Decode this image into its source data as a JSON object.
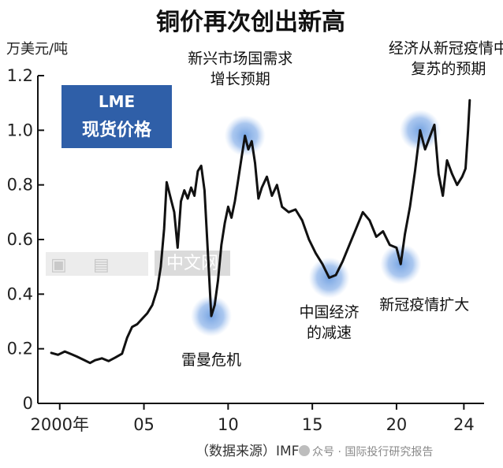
{
  "chart_data": {
    "type": "line",
    "title": "铜价再次创出新高",
    "ylabel": "万美元/吨",
    "ylim": [
      0,
      1.2
    ],
    "yticks": [
      "0",
      "0.2",
      "0.4",
      "0.6",
      "0.8",
      "1.0",
      "1.2"
    ],
    "xlim": [
      1998.7,
      2025.2
    ],
    "xticks": [
      {
        "x": 2000,
        "label": "2000年"
      },
      {
        "x": 2005,
        "label": "05"
      },
      {
        "x": 2010,
        "label": "10"
      },
      {
        "x": 2015,
        "label": "15"
      },
      {
        "x": 2020,
        "label": "20"
      },
      {
        "x": 2024,
        "label": "24"
      }
    ],
    "grid": false,
    "legend_box": {
      "line1": "LME",
      "line2": "现货价格"
    },
    "series": [
      {
        "name": "",
        "points": [
          [
            1999.5,
            0.185
          ],
          [
            1999.9,
            0.178
          ],
          [
            2000.3,
            0.19
          ],
          [
            2000.7,
            0.18
          ],
          [
            2001.0,
            0.172
          ],
          [
            2001.4,
            0.16
          ],
          [
            2001.8,
            0.148
          ],
          [
            2002.1,
            0.158
          ],
          [
            2002.5,
            0.165
          ],
          [
            2002.9,
            0.155
          ],
          [
            2003.3,
            0.168
          ],
          [
            2003.7,
            0.182
          ],
          [
            2004.0,
            0.24
          ],
          [
            2004.3,
            0.28
          ],
          [
            2004.6,
            0.29
          ],
          [
            2004.9,
            0.31
          ],
          [
            2005.2,
            0.33
          ],
          [
            2005.5,
            0.36
          ],
          [
            2005.8,
            0.42
          ],
          [
            2006.0,
            0.5
          ],
          [
            2006.2,
            0.64
          ],
          [
            2006.35,
            0.81
          ],
          [
            2006.55,
            0.76
          ],
          [
            2006.8,
            0.7
          ],
          [
            2007.0,
            0.57
          ],
          [
            2007.2,
            0.74
          ],
          [
            2007.4,
            0.78
          ],
          [
            2007.6,
            0.75
          ],
          [
            2007.8,
            0.79
          ],
          [
            2008.0,
            0.76
          ],
          [
            2008.2,
            0.85
          ],
          [
            2008.4,
            0.87
          ],
          [
            2008.6,
            0.78
          ],
          [
            2008.8,
            0.55
          ],
          [
            2009.0,
            0.32
          ],
          [
            2009.2,
            0.36
          ],
          [
            2009.4,
            0.45
          ],
          [
            2009.6,
            0.58
          ],
          [
            2009.8,
            0.66
          ],
          [
            2010.0,
            0.72
          ],
          [
            2010.2,
            0.68
          ],
          [
            2010.4,
            0.74
          ],
          [
            2010.6,
            0.82
          ],
          [
            2010.8,
            0.9
          ],
          [
            2011.0,
            0.98
          ],
          [
            2011.2,
            0.93
          ],
          [
            2011.4,
            0.96
          ],
          [
            2011.6,
            0.88
          ],
          [
            2011.8,
            0.75
          ],
          [
            2012.0,
            0.79
          ],
          [
            2012.3,
            0.83
          ],
          [
            2012.6,
            0.76
          ],
          [
            2012.9,
            0.8
          ],
          [
            2013.2,
            0.72
          ],
          [
            2013.6,
            0.7
          ],
          [
            2014.0,
            0.71
          ],
          [
            2014.4,
            0.67
          ],
          [
            2014.8,
            0.6
          ],
          [
            2015.2,
            0.55
          ],
          [
            2015.6,
            0.51
          ],
          [
            2016.0,
            0.46
          ],
          [
            2016.4,
            0.47
          ],
          [
            2016.8,
            0.52
          ],
          [
            2017.2,
            0.58
          ],
          [
            2017.6,
            0.64
          ],
          [
            2018.0,
            0.7
          ],
          [
            2018.4,
            0.67
          ],
          [
            2018.8,
            0.61
          ],
          [
            2019.2,
            0.63
          ],
          [
            2019.6,
            0.58
          ],
          [
            2020.0,
            0.57
          ],
          [
            2020.25,
            0.51
          ],
          [
            2020.5,
            0.62
          ],
          [
            2020.8,
            0.72
          ],
          [
            2021.1,
            0.85
          ],
          [
            2021.4,
            1.0
          ],
          [
            2021.7,
            0.93
          ],
          [
            2022.0,
            0.98
          ],
          [
            2022.25,
            1.02
          ],
          [
            2022.5,
            0.84
          ],
          [
            2022.75,
            0.76
          ],
          [
            2023.0,
            0.89
          ],
          [
            2023.3,
            0.84
          ],
          [
            2023.6,
            0.8
          ],
          [
            2023.9,
            0.83
          ],
          [
            2024.1,
            0.86
          ],
          [
            2024.25,
            1.0
          ],
          [
            2024.35,
            1.11
          ]
        ]
      }
    ],
    "annotations": [
      {
        "lines": [
          "雷曼危机"
        ],
        "x": 2009.0,
        "y": 0.32
      },
      {
        "lines": [
          "新兴市场国需求",
          "增长预期"
        ],
        "x": 2011.0,
        "y": 0.98
      },
      {
        "lines": [
          "中国经济",
          "的减速"
        ],
        "x": 2016.0,
        "y": 0.46
      },
      {
        "lines": [
          "新冠疫情扩大"
        ],
        "x": 2020.25,
        "y": 0.51
      },
      {
        "lines": [
          "经济从新冠疫情中",
          "复苏的预期"
        ],
        "x": 2021.4,
        "y": 1.0
      }
    ],
    "source": "（数据来源）IMF",
    "watermark_text": "中文网",
    "credit": "众号 · 国际投行研究报告"
  }
}
